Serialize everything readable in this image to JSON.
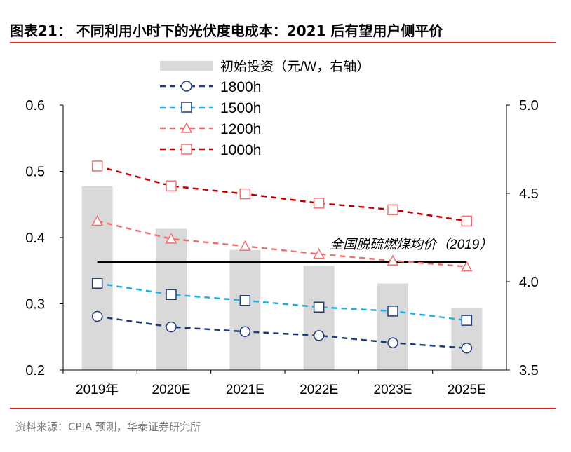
{
  "title": "图表21：  不同利用小时下的光伏度电成本：2021 后有望用户侧平价",
  "source": "资料来源：CPIA 预测，华泰证券研究所",
  "chart_data": {
    "type": "bar+line",
    "categories": [
      "2019年",
      "2020E",
      "2021E",
      "2022E",
      "2023E",
      "2025E"
    ],
    "left_axis": {
      "ylim": [
        0.2,
        0.6
      ],
      "ticks": [
        "0.2",
        "0.3",
        "0.4",
        "0.5",
        "0.6"
      ]
    },
    "right_axis": {
      "ylim": [
        3.5,
        5.0
      ],
      "ticks": [
        "3.5",
        "4.0",
        "4.5",
        "5.0"
      ]
    },
    "bars": {
      "name": "初始投资（元/W，右轴）",
      "axis": "right",
      "color": "#d9d9d9",
      "values": [
        4.54,
        4.3,
        4.18,
        4.09,
        3.99,
        3.85
      ]
    },
    "series": [
      {
        "name": "1800h",
        "axis": "left",
        "color": "#1f3c7a",
        "marker": "circle",
        "marker_color": "#1f3c7a",
        "values": [
          0.281,
          0.265,
          0.258,
          0.252,
          0.241,
          0.233
        ]
      },
      {
        "name": "1500h",
        "axis": "left",
        "color": "#1fb0e8",
        "marker": "square",
        "marker_color": "#1f3c7a",
        "values": [
          0.331,
          0.314,
          0.305,
          0.295,
          0.289,
          0.275
        ]
      },
      {
        "name": "1200h",
        "axis": "left",
        "color": "#f07070",
        "marker": "triangle",
        "marker_color": "#f07070",
        "values": [
          0.425,
          0.398,
          0.387,
          0.375,
          0.365,
          0.356
        ]
      },
      {
        "name": "1000h",
        "axis": "left",
        "color": "#c00000",
        "marker": "square",
        "marker_color": "#f07070",
        "values": [
          0.508,
          0.478,
          0.466,
          0.452,
          0.442,
          0.425
        ]
      }
    ],
    "reference_line": {
      "label": "全国脱硫燃煤均价（2019）",
      "value": 0.363,
      "color": "#000000"
    },
    "legend_placement": "top-center",
    "grid": false
  }
}
